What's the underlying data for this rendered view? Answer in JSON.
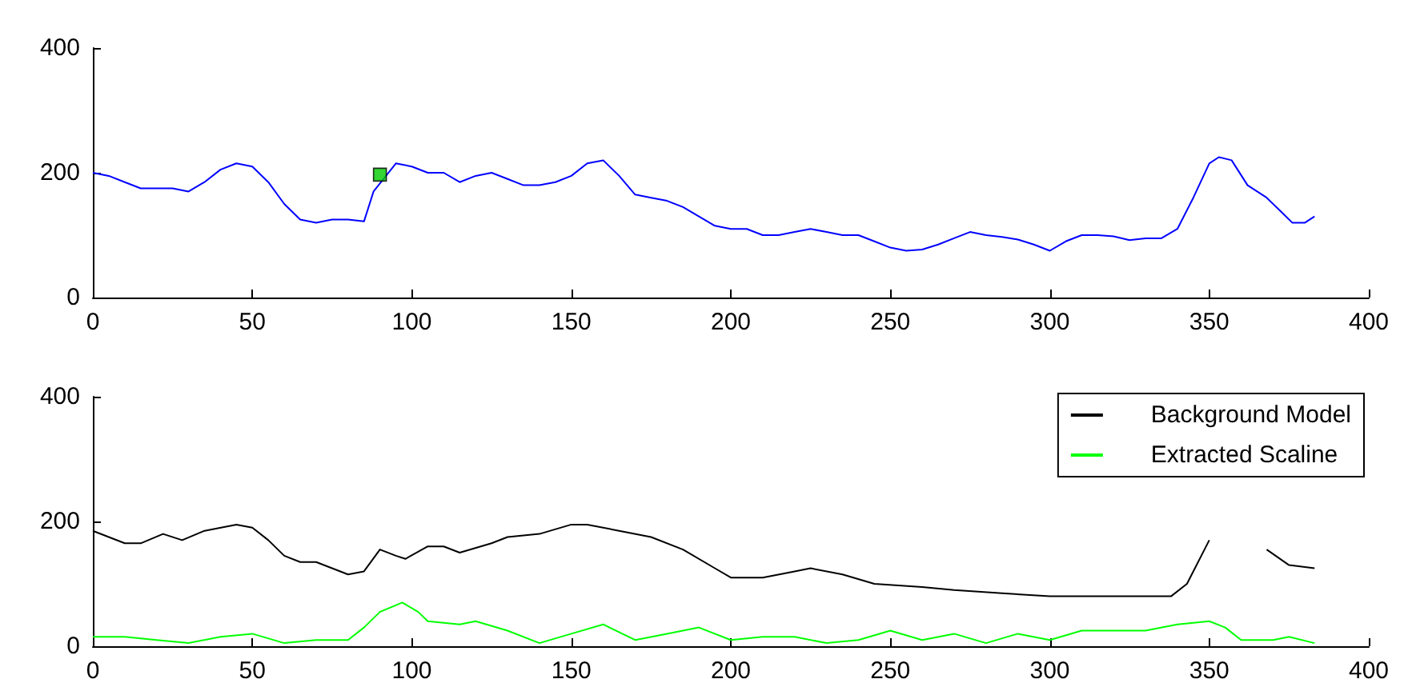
{
  "chart_data": [
    {
      "type": "line",
      "x": [
        0,
        5,
        10,
        15,
        20,
        25,
        30,
        35,
        40,
        45,
        50,
        55,
        60,
        65,
        70,
        75,
        80,
        85,
        88,
        95,
        100,
        105,
        110,
        115,
        120,
        125,
        130,
        135,
        140,
        145,
        150,
        155,
        160,
        165,
        170,
        175,
        180,
        185,
        190,
        195,
        200,
        205,
        210,
        215,
        220,
        225,
        230,
        235,
        240,
        245,
        250,
        255,
        260,
        265,
        270,
        275,
        280,
        285,
        290,
        295,
        300,
        305,
        310,
        315,
        320,
        325,
        330,
        335,
        340,
        345,
        350,
        353,
        357,
        362,
        368,
        372,
        376,
        380,
        383
      ],
      "series": [
        {
          "color": "#0000ff",
          "values": [
            200,
            195,
            185,
            175,
            175,
            175,
            170,
            185,
            205,
            215,
            210,
            185,
            150,
            125,
            120,
            125,
            125,
            122,
            170,
            215,
            210,
            200,
            200,
            185,
            195,
            200,
            190,
            180,
            180,
            185,
            195,
            215,
            220,
            195,
            165,
            160,
            155,
            145,
            130,
            115,
            110,
            110,
            100,
            100,
            105,
            110,
            105,
            100,
            100,
            90,
            80,
            75,
            77,
            85,
            95,
            105,
            100,
            97,
            93,
            85,
            75,
            90,
            100,
            100,
            98,
            92,
            95,
            95,
            110,
            160,
            215,
            225,
            220,
            180,
            160,
            140,
            120,
            120,
            130
          ]
        },
        {
          "type": "scatter",
          "color": "#00cc00",
          "x": [
            90
          ],
          "values": [
            197
          ],
          "marker": "square"
        }
      ],
      "xlim": [
        0,
        400
      ],
      "xticks": [
        0,
        50,
        100,
        150,
        200,
        250,
        300,
        350,
        400
      ],
      "ylim": [
        0,
        400
      ],
      "yticks": [
        0,
        200,
        400
      ],
      "grid": false
    },
    {
      "type": "line",
      "x": [
        0,
        5,
        10,
        15,
        22,
        28,
        35,
        45,
        50,
        55,
        60,
        65,
        70,
        80,
        85,
        90,
        95,
        98,
        105,
        110,
        115,
        125,
        130,
        140,
        150,
        155,
        165,
        175,
        185,
        195,
        200,
        210,
        220,
        225,
        235,
        245,
        260,
        270,
        285,
        300,
        320,
        338,
        343,
        350,
        355,
        360,
        365,
        368,
        375,
        383
      ],
      "series": [
        {
          "name": "Background Model",
          "color": "#000000",
          "values": [
            185,
            175,
            165,
            165,
            180,
            170,
            185,
            195,
            190,
            170,
            145,
            135,
            135,
            115,
            120,
            155,
            145,
            140,
            160,
            160,
            150,
            165,
            175,
            180,
            195,
            195,
            185,
            175,
            155,
            125,
            110,
            110,
            120,
            125,
            115,
            100,
            95,
            90,
            85,
            80,
            80,
            80,
            100,
            170,
            null,
            null,
            null,
            155,
            130,
            125
          ]
        },
        {
          "name": "Extracted Scaline",
          "color": "#00ff00",
          "x": [
            0,
            10,
            20,
            30,
            40,
            50,
            60,
            70,
            80,
            85,
            90,
            97,
            102,
            105,
            115,
            120,
            130,
            140,
            150,
            160,
            170,
            180,
            190,
            200,
            210,
            220,
            230,
            240,
            250,
            260,
            270,
            280,
            290,
            300,
            310,
            320,
            330,
            340,
            350,
            355,
            360,
            370,
            375,
            383
          ],
          "values": [
            15,
            15,
            10,
            5,
            15,
            20,
            5,
            10,
            10,
            30,
            55,
            70,
            55,
            40,
            35,
            40,
            25,
            5,
            20,
            35,
            10,
            20,
            30,
            10,
            15,
            15,
            5,
            10,
            25,
            10,
            20,
            5,
            20,
            10,
            25,
            25,
            25,
            35,
            40,
            30,
            10,
            10,
            15,
            5
          ]
        }
      ],
      "xlim": [
        0,
        400
      ],
      "xticks": [
        0,
        50,
        100,
        150,
        200,
        250,
        300,
        350,
        400
      ],
      "ylim": [
        0,
        400
      ],
      "yticks": [
        0,
        200,
        400
      ],
      "grid": false,
      "legend": "top right"
    }
  ]
}
